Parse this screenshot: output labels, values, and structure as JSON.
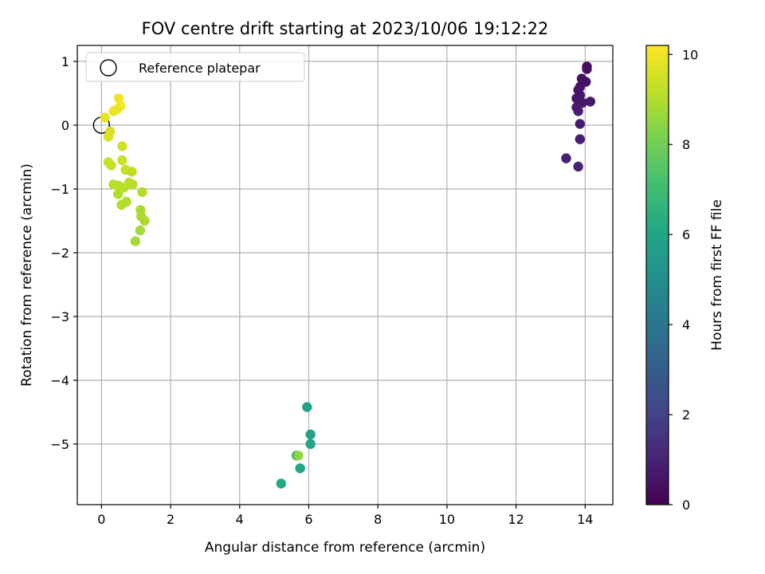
{
  "chart_data": {
    "type": "scatter",
    "title": "FOV centre drift starting at 2023/10/06 19:12:22",
    "xlabel": "Angular distance from reference (arcmin)",
    "ylabel": "Rotation from reference (arcmin)",
    "xlim": [
      -0.7,
      14.8
    ],
    "ylim": [
      -5.95,
      1.25
    ],
    "x_ticks": [
      0,
      2,
      4,
      6,
      8,
      10,
      12,
      14
    ],
    "y_ticks": [
      1,
      0,
      -1,
      -2,
      -3,
      -4,
      -5
    ],
    "grid": true,
    "legend": {
      "placement": "top-left",
      "entries": [
        "Reference platepar"
      ]
    },
    "reference_point": {
      "x": 0,
      "y": 0
    },
    "colorbar": {
      "label": "Hours from first FF file",
      "range": [
        0,
        10.2
      ],
      "ticks": [
        0,
        2,
        4,
        6,
        8,
        10
      ],
      "colormap": "viridis"
    },
    "points": [
      {
        "x": 14.05,
        "y": 0.92,
        "t": 0.4
      },
      {
        "x": 14.05,
        "y": 0.88,
        "t": 0.4
      },
      {
        "x": 13.9,
        "y": 0.73,
        "t": 0.5
      },
      {
        "x": 14.02,
        "y": 0.68,
        "t": 0.5
      },
      {
        "x": 13.85,
        "y": 0.6,
        "t": 0.5
      },
      {
        "x": 13.8,
        "y": 0.55,
        "t": 0.6
      },
      {
        "x": 13.85,
        "y": 0.47,
        "t": 0.6
      },
      {
        "x": 13.75,
        "y": 0.42,
        "t": 0.6
      },
      {
        "x": 14.15,
        "y": 0.37,
        "t": 0.7
      },
      {
        "x": 13.92,
        "y": 0.35,
        "t": 0.7
      },
      {
        "x": 13.75,
        "y": 0.28,
        "t": 0.7
      },
      {
        "x": 13.8,
        "y": 0.22,
        "t": 0.8
      },
      {
        "x": 13.85,
        "y": 0.02,
        "t": 0.8
      },
      {
        "x": 13.85,
        "y": -0.22,
        "t": 0.9
      },
      {
        "x": 13.45,
        "y": -0.52,
        "t": 0.9
      },
      {
        "x": 13.8,
        "y": -0.65,
        "t": 1.0
      },
      {
        "x": 5.95,
        "y": -4.42,
        "t": 5.9
      },
      {
        "x": 6.05,
        "y": -4.85,
        "t": 5.9
      },
      {
        "x": 6.05,
        "y": -5.0,
        "t": 6.0
      },
      {
        "x": 5.65,
        "y": -5.18,
        "t": 6.0
      },
      {
        "x": 5.75,
        "y": -5.38,
        "t": 6.1
      },
      {
        "x": 5.2,
        "y": -5.62,
        "t": 6.1
      },
      {
        "x": 5.7,
        "y": -5.18,
        "t": 8.5
      },
      {
        "x": 0.5,
        "y": 0.42,
        "t": 10.0
      },
      {
        "x": 0.55,
        "y": 0.3,
        "t": 10.1
      },
      {
        "x": 0.35,
        "y": 0.22,
        "t": 9.9
      },
      {
        "x": 0.45,
        "y": 0.25,
        "t": 9.9
      },
      {
        "x": 0.1,
        "y": 0.12,
        "t": 9.8
      },
      {
        "x": 0.25,
        "y": -0.1,
        "t": 9.6
      },
      {
        "x": 0.2,
        "y": -0.18,
        "t": 9.6
      },
      {
        "x": 0.6,
        "y": -0.33,
        "t": 9.5
      },
      {
        "x": 0.6,
        "y": -0.55,
        "t": 9.4
      },
      {
        "x": 0.2,
        "y": -0.58,
        "t": 9.4
      },
      {
        "x": 0.28,
        "y": -0.63,
        "t": 9.3
      },
      {
        "x": 0.7,
        "y": -0.7,
        "t": 9.3
      },
      {
        "x": 0.88,
        "y": -0.73,
        "t": 9.2
      },
      {
        "x": 0.8,
        "y": -0.9,
        "t": 9.2
      },
      {
        "x": 0.35,
        "y": -0.93,
        "t": 9.1
      },
      {
        "x": 0.5,
        "y": -0.95,
        "t": 9.1
      },
      {
        "x": 0.65,
        "y": -0.98,
        "t": 9.1
      },
      {
        "x": 0.9,
        "y": -0.93,
        "t": 9.1
      },
      {
        "x": 0.48,
        "y": -1.08,
        "t": 9.0
      },
      {
        "x": 1.18,
        "y": -1.05,
        "t": 9.0
      },
      {
        "x": 0.72,
        "y": -1.2,
        "t": 9.0
      },
      {
        "x": 0.58,
        "y": -1.25,
        "t": 9.0
      },
      {
        "x": 1.13,
        "y": -1.33,
        "t": 8.9
      },
      {
        "x": 1.15,
        "y": -1.43,
        "t": 8.9
      },
      {
        "x": 1.25,
        "y": -1.5,
        "t": 8.9
      },
      {
        "x": 1.12,
        "y": -1.65,
        "t": 8.8
      },
      {
        "x": 0.98,
        "y": -1.82,
        "t": 8.8
      }
    ]
  }
}
